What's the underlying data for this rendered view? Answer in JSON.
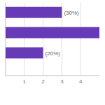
{
  "chart_data": {
    "type": "bar",
    "orientation": "horizontal",
    "categories": [
      null,
      null,
      null
    ],
    "values": [
      3,
      5,
      2
    ],
    "value_labels": [
      "(30%)",
      null,
      "(20%)"
    ],
    "data_labels": true,
    "color": "#673ab7",
    "xlim": [
      0,
      5
    ],
    "xticks": [
      1,
      2,
      3,
      4
    ],
    "grid": true
  }
}
